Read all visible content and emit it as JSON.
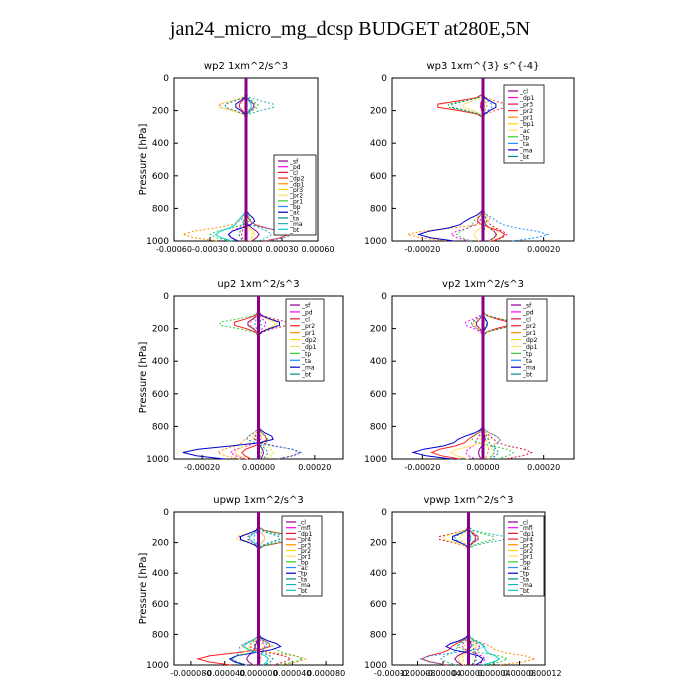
{
  "title": "jan24_micro_mg_dcsp  BUDGET at280E,5N",
  "colors": {
    "palette": [
      "#8b008b",
      "#ff00ff",
      "#dc143c",
      "#ff2020",
      "#ff8c00",
      "#ffd700",
      "#ffe066",
      "#32cd32",
      "#1e90ff",
      "#0000cd",
      "#008b8b",
      "#20b2aa",
      "#00ced1"
    ],
    "frame": "#000000",
    "legend_border": "#000000"
  },
  "chart_data": [
    {
      "type": "line",
      "title": "wp2  1xm^2/s^3",
      "ylabel": "Pressure [hPa]",
      "ylim": [
        1000,
        0
      ],
      "xlim": [
        -0.0006,
        0.0006
      ],
      "yticks": [
        "0",
        "200",
        "400",
        "600",
        "800",
        "1000"
      ],
      "xticks": [
        "-0.00060",
        "-0.00030",
        "0.00000",
        "0.00030",
        "0.00060"
      ],
      "legend": [
        "_sf",
        "_pd",
        "_cl",
        "_dp2",
        "_dp1",
        "_pr3",
        "_pr2",
        "_pr1",
        "_bp",
        "_ac",
        "_ta",
        "_ma",
        "_bt"
      ]
    },
    {
      "type": "line",
      "title": "wp3  1xm^{3} s^{-4}",
      "ylabel": "",
      "ylim": [
        1000,
        0
      ],
      "xlim": [
        -0.0003,
        0.0003
      ],
      "yticks": [
        "0",
        "200",
        "400",
        "600",
        "800",
        "1000"
      ],
      "xticks": [
        "-0.00020",
        "0.00000",
        "0.00020"
      ],
      "legend": [
        "_cl",
        "_dp1",
        "_pr3",
        "_pr2",
        "_pr1",
        "_bp1",
        "_ac",
        "_tp",
        "_ta",
        "_ma",
        "_bt"
      ]
    },
    {
      "type": "line",
      "title": "up2  1xm^2/s^3",
      "ylabel": "Pressure [hPa]",
      "ylim": [
        1000,
        0
      ],
      "xlim": [
        -0.0003,
        0.0003
      ],
      "yticks": [
        "0",
        "200",
        "400",
        "600",
        "800",
        "1000"
      ],
      "xticks": [
        "-0.00020",
        "0.00000",
        "0.00020"
      ],
      "legend": [
        "_sf",
        "_pd",
        "_cl",
        "_pr2",
        "_pr1",
        "_dp2",
        "_dp1",
        "_tp",
        "_ta",
        "_ma",
        "_bt"
      ]
    },
    {
      "type": "line",
      "title": "vp2  1xm^2/s^3",
      "ylabel": "",
      "ylim": [
        1000,
        0
      ],
      "xlim": [
        -0.0003,
        0.0003
      ],
      "yticks": [
        "0",
        "200",
        "400",
        "600",
        "800",
        "1000"
      ],
      "xticks": [
        "-0.00020",
        "0.00000",
        "0.00020"
      ],
      "legend": [
        "_sf",
        "_pd",
        "_cl",
        "_pr2",
        "_pr1",
        "_dp2",
        "_dp1",
        "_tp",
        "_ta",
        "_ma",
        "_bt"
      ]
    },
    {
      "type": "line",
      "title": "upwp  1xm^2/s^3",
      "ylabel": "Pressure [hPa]",
      "ylim": [
        1000,
        0
      ],
      "xlim": [
        -0.0001,
        0.0001
      ],
      "yticks": [
        "0",
        "200",
        "400",
        "600",
        "800",
        "1000"
      ],
      "xticks": [
        "-0.000080",
        "-0.000040",
        "0.000000",
        "0.000040",
        "0.000080"
      ],
      "legend": [
        "_cl",
        "_mfl",
        "_dp1",
        "_pr4",
        "_pr3",
        "_pr2",
        "_pr1",
        "_bp",
        "_ac",
        "_tp",
        "_ta",
        "_ma",
        "_bt"
      ]
    },
    {
      "type": "line",
      "title": "vpwp  1xm^2/s^3",
      "ylabel": "",
      "ylim": [
        1000,
        0
      ],
      "xlim": [
        -0.00012,
        0.00012
      ],
      "yticks": [
        "0",
        "200",
        "400",
        "600",
        "800",
        "1000"
      ],
      "xticks": [
        "-0.00012",
        "-0.00008",
        "-0.00004",
        "0.00000",
        "0.00004",
        "0.00008",
        "0.00012"
      ],
      "legend": [
        "_cl",
        "_mfl",
        "_dp1",
        "_pr4",
        "_pr3",
        "_pr2",
        "_pr1",
        "_bp",
        "_ac",
        "_tp",
        "_ta",
        "_ma",
        "_bt"
      ]
    }
  ]
}
